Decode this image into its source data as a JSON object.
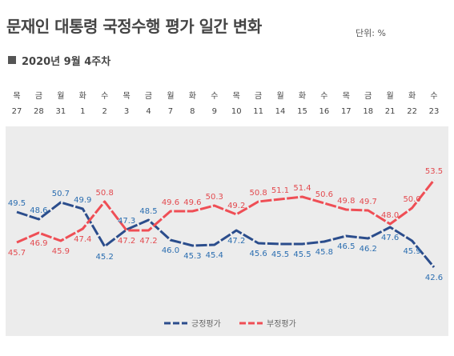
{
  "header": {
    "title": "문재인 대통령 국정수행 평가 일간 변화",
    "unit": "단위: %",
    "subtitle": "2020년 9월 4주차"
  },
  "colors": {
    "positive": "#2b4d8c",
    "negative": "#ef4e55",
    "positive_label": "#2a6db0",
    "negative_label": "#e34a4f",
    "plot_background": "#ececec"
  },
  "chart_data": {
    "type": "line",
    "days": [
      "목",
      "금",
      "월",
      "화",
      "수",
      "목",
      "금",
      "월",
      "화",
      "수",
      "목",
      "금",
      "월",
      "화",
      "수",
      "목",
      "금",
      "월",
      "화",
      "수"
    ],
    "categories": [
      "27",
      "28",
      "31",
      "1",
      "2",
      "3",
      "4",
      "7",
      "8",
      "9",
      "10",
      "11",
      "14",
      "15",
      "16",
      "17",
      "18",
      "21",
      "22",
      "23"
    ],
    "series": [
      {
        "name": "긍정평가",
        "color": "#2b4d8c",
        "dash": "dashed",
        "values": [
          49.5,
          48.6,
          50.7,
          49.9,
          45.2,
          47.3,
          48.5,
          46.0,
          45.3,
          45.4,
          47.2,
          45.6,
          45.5,
          45.5,
          45.8,
          46.5,
          46.2,
          47.6,
          45.9,
          42.6
        ]
      },
      {
        "name": "부정평가",
        "color": "#ef4e55",
        "dash": "dashed",
        "values": [
          45.7,
          46.9,
          45.9,
          47.4,
          50.8,
          47.2,
          47.2,
          49.6,
          49.6,
          50.3,
          49.2,
          50.8,
          51.1,
          51.4,
          50.6,
          49.8,
          49.7,
          48.0,
          50.0,
          53.5
        ]
      }
    ],
    "legend": "bottom-center",
    "grid": false
  }
}
